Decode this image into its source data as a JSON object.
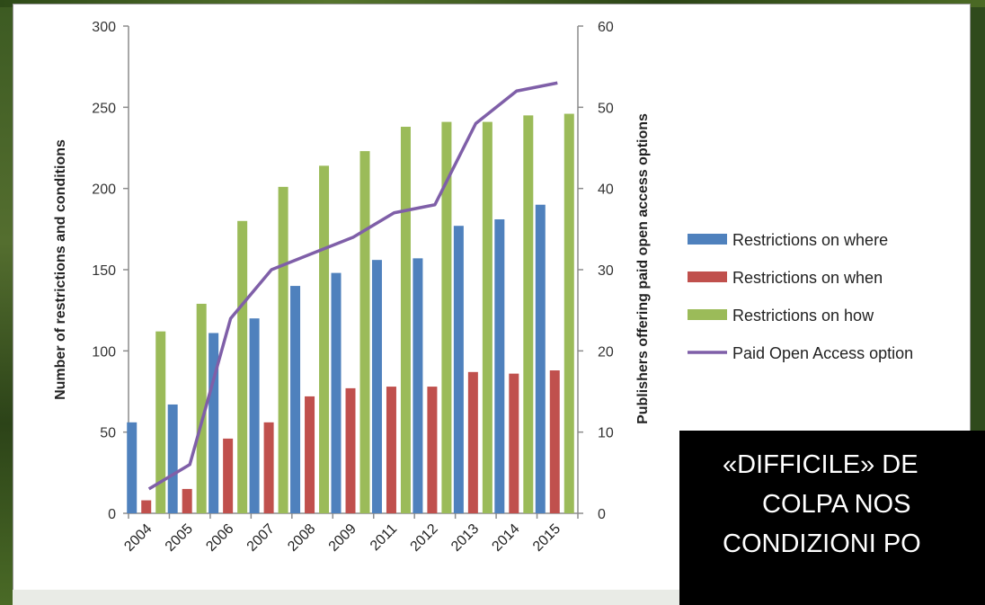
{
  "chart_data": {
    "type": "bar",
    "categories": [
      "2004",
      "2005",
      "2006",
      "2007",
      "2008",
      "2009",
      "2011",
      "2012",
      "2013",
      "2014",
      "2015"
    ],
    "series": [
      {
        "name": "Restrictions on where",
        "type": "bar",
        "axis": "left",
        "color": "#4f81bd",
        "values": [
          56,
          67,
          111,
          120,
          140,
          148,
          156,
          157,
          177,
          181,
          190
        ]
      },
      {
        "name": "Restrictions on when",
        "type": "bar",
        "axis": "left",
        "color": "#c0504d",
        "values": [
          8,
          15,
          46,
          56,
          72,
          77,
          78,
          78,
          87,
          86,
          88
        ]
      },
      {
        "name": "Restrictions on how",
        "type": "bar",
        "axis": "left",
        "color": "#9bbb59",
        "values": [
          112,
          129,
          180,
          201,
          214,
          223,
          238,
          241,
          241,
          245,
          246
        ]
      },
      {
        "name": "Paid Open Access option",
        "type": "line",
        "axis": "right",
        "color": "#7f5fa8",
        "values": [
          3,
          6,
          24,
          30,
          32,
          34,
          37,
          38,
          48,
          52,
          53
        ]
      }
    ],
    "ylabel": "Number of restrictions and conditions",
    "ylabel_right": "Publishers offering paid open access options",
    "ylim": [
      0,
      300
    ],
    "ylim_right": [
      0,
      60
    ],
    "yticks": [
      "0",
      "50",
      "100",
      "150",
      "200",
      "250",
      "300"
    ],
    "yticks_right": [
      "0",
      "10",
      "20",
      "30",
      "40",
      "50",
      "60"
    ],
    "legend_position": "right",
    "grid": false
  },
  "caption": {
    "lines": [
      "«DIFFICILE» DE",
      "COLPA NOS",
      "CONDIZIONI PO"
    ]
  }
}
